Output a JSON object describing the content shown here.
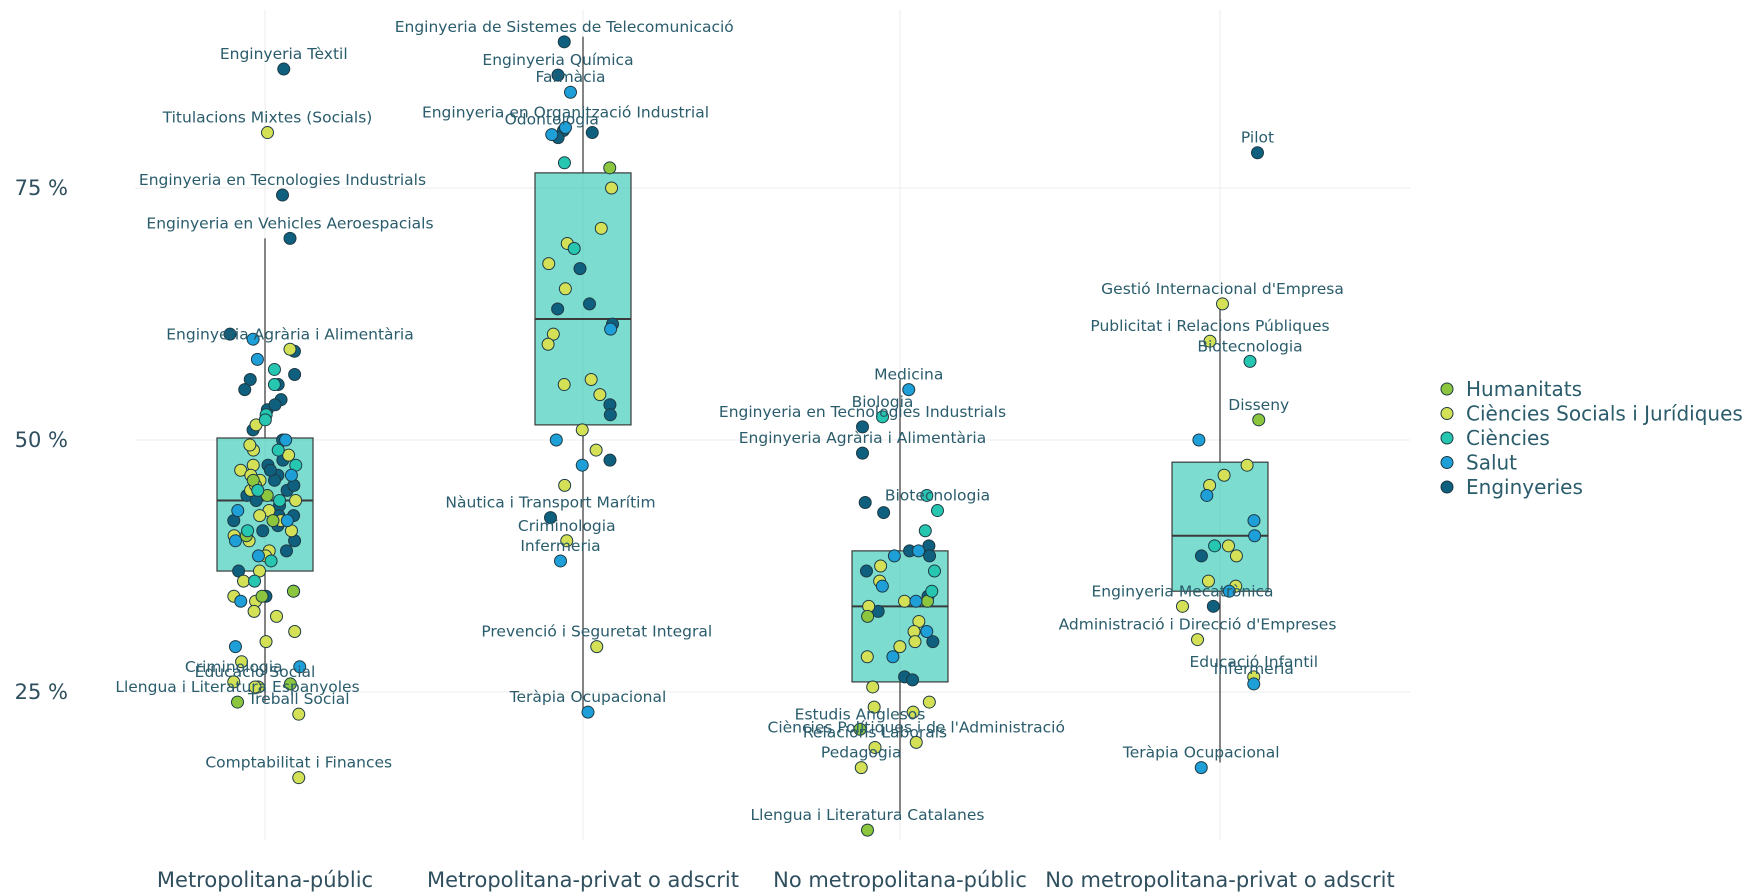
{
  "chart_data": {
    "type": "box",
    "categories": [
      "Metropolitana-públic",
      "Metropolitana-privat o adscrit",
      "No metropolitana-públic",
      "No metropolitana-privat o adscrit"
    ],
    "y_ticks": [
      {
        "value": 25,
        "label": "25 %"
      },
      {
        "value": 50,
        "label": "50 %"
      },
      {
        "value": 75,
        "label": "75 %"
      }
    ],
    "ylim": [
      8,
      93
    ],
    "grid": true,
    "legend_position": "right",
    "legend": [
      {
        "name": "Humanitats",
        "color": "#8cc63f"
      },
      {
        "name": "Ciències Socials i Jurídiques",
        "color": "#d4e157"
      },
      {
        "name": "Ciències",
        "color": "#26c6b0"
      },
      {
        "name": "Salut",
        "color": "#1e9fd8"
      },
      {
        "name": "Enginyeries",
        "color": "#0f5f7f"
      }
    ],
    "boxes": [
      {
        "category": "Metropolitana-públic",
        "whisker_low": 24,
        "q1": 37,
        "median": 44,
        "q3": 50.2,
        "whisker_high": 70
      },
      {
        "category": "Metropolitana-privat o adscrit",
        "whisker_low": 23,
        "q1": 51.5,
        "median": 62,
        "q3": 76.5,
        "whisker_high": 90
      },
      {
        "category": "No metropolitana-públic",
        "whisker_low": 13,
        "q1": 26,
        "median": 33.5,
        "q3": 39,
        "whisker_high": 56
      },
      {
        "category": "No metropolitana-privat o adscrit",
        "whisker_low": 18,
        "q1": 35,
        "median": 40.5,
        "q3": 47.8,
        "whisker_high": 63
      }
    ],
    "annotations": [
      {
        "category": 0,
        "text": "Enginyeria Tèxtil",
        "value": 86.8,
        "jitter": 0.15,
        "group": "Enginyeries"
      },
      {
        "category": 0,
        "text": "Titulacions Mixtes (Socials)",
        "value": 80.5,
        "jitter": 0.02,
        "group": "Ciències Socials i Jurídiques"
      },
      {
        "category": 0,
        "text": "Enginyeria en Tecnologies Industrials",
        "value": 74.3,
        "jitter": 0.14,
        "group": "Enginyeries"
      },
      {
        "category": 0,
        "text": "Enginyeria en Vehicles Aeroespacials",
        "value": 70.0,
        "jitter": 0.2,
        "group": "Enginyeries"
      },
      {
        "category": 0,
        "text": "Enginyeria Agrària i Alimentària",
        "value": 59.0,
        "jitter": 0.2,
        "group": "Ciències Socials i Jurídiques"
      },
      {
        "category": 0,
        "text": "Criminologia",
        "value": 26.0,
        "jitter": -0.25,
        "group": "Ciències Socials i Jurídiques"
      },
      {
        "category": 0,
        "text": "Educació Social",
        "value": 25.5,
        "jitter": -0.08,
        "group": "Ciències Socials i Jurídiques"
      },
      {
        "category": 0,
        "text": "Llengua i Literatura Espanyoles",
        "value": 24.0,
        "jitter": -0.22,
        "group": "Humanitats"
      },
      {
        "category": 0,
        "text": "Treball Social",
        "value": 22.8,
        "jitter": 0.27,
        "group": "Ciències Socials i Jurídiques"
      },
      {
        "category": 0,
        "text": "Comptabilitat i Finances",
        "value": 16.5,
        "jitter": 0.27,
        "group": "Ciències Socials i Jurídiques"
      },
      {
        "category": 1,
        "text": "Enginyeria de Sistemes de Telecomunicació",
        "value": 89.5,
        "jitter": -0.15,
        "group": "Enginyeries"
      },
      {
        "category": 1,
        "text": "Enginyeria Química",
        "value": 86.2,
        "jitter": -0.2,
        "group": "Enginyeries"
      },
      {
        "category": 1,
        "text": "Farmàcia",
        "value": 84.5,
        "jitter": -0.1,
        "group": "Salut"
      },
      {
        "category": 1,
        "text": "Enginyeria en Organització Industrial",
        "value": 81.0,
        "jitter": -0.14,
        "group": "Salut"
      },
      {
        "category": 1,
        "text": "Odontologia",
        "value": 80.3,
        "jitter": -0.25,
        "group": "Salut"
      },
      {
        "category": 1,
        "text": "Nàutica i Transport Marítim",
        "value": 42.3,
        "jitter": -0.26,
        "group": "Enginyeries"
      },
      {
        "category": 1,
        "text": "Criminologia",
        "value": 40.0,
        "jitter": -0.13,
        "group": "Ciències Socials i Jurídiques"
      },
      {
        "category": 1,
        "text": "Infermeria",
        "value": 38.0,
        "jitter": -0.18,
        "group": "Salut"
      },
      {
        "category": 1,
        "text": "Prevenció i Seguretat Integral",
        "value": 29.5,
        "jitter": 0.11,
        "group": "Ciències Socials i Jurídiques"
      },
      {
        "category": 1,
        "text": "Teràpia Ocupacional",
        "value": 23.0,
        "jitter": 0.04,
        "group": "Salut"
      },
      {
        "category": 2,
        "text": "Medicina",
        "value": 55.0,
        "jitter": 0.07,
        "group": "Salut"
      },
      {
        "category": 2,
        "text": "Biologia",
        "value": 52.3,
        "jitter": -0.14,
        "group": "Ciències"
      },
      {
        "category": 2,
        "text": "Enginyeria en Tecnologies Industrials",
        "value": 51.3,
        "jitter": -0.3,
        "group": "Enginyeries"
      },
      {
        "category": 2,
        "text": "Enginyeria Agrària i Alimentària",
        "value": 48.7,
        "jitter": -0.3,
        "group": "Enginyeries"
      },
      {
        "category": 2,
        "text": "Biotecnologia",
        "value": 43.0,
        "jitter": 0.3,
        "group": "Ciències"
      },
      {
        "category": 2,
        "text": "Estudis Anglesos",
        "value": 21.3,
        "jitter": -0.32,
        "group": "Humanitats"
      },
      {
        "category": 2,
        "text": "Relacions Laborals",
        "value": 19.5,
        "jitter": -0.2,
        "group": "Ciències Socials i Jurídiques"
      },
      {
        "category": 2,
        "text": "Ciències Polítiques i de l'Administració",
        "value": 20.0,
        "jitter": 0.13,
        "group": "Ciències Socials i Jurídiques"
      },
      {
        "category": 2,
        "text": "Pedagogia",
        "value": 17.5,
        "jitter": -0.31,
        "group": "Ciències Socials i Jurídiques"
      },
      {
        "category": 2,
        "text": "Llengua i Literatura Catalanes",
        "value": 11.3,
        "jitter": -0.26,
        "group": "Humanitats"
      },
      {
        "category": 3,
        "text": "Pilot",
        "value": 78.5,
        "jitter": 0.3,
        "group": "Enginyeries"
      },
      {
        "category": 3,
        "text": "Gestió Internacional d'Empresa",
        "value": 63.5,
        "jitter": 0.02,
        "group": "Ciències Socials i Jurídiques"
      },
      {
        "category": 3,
        "text": "Publicitat i Relacions Públiques",
        "value": 59.8,
        "jitter": -0.08,
        "group": "Ciències Socials i Jurídiques"
      },
      {
        "category": 3,
        "text": "Biotecnologia",
        "value": 57.8,
        "jitter": 0.24,
        "group": "Ciències"
      },
      {
        "category": 3,
        "text": "Disseny",
        "value": 52.0,
        "jitter": 0.31,
        "group": "Humanitats"
      },
      {
        "category": 3,
        "text": "Enginyeria Mecatrònica",
        "value": 33.5,
        "jitter": -0.3,
        "group": "Ciències Socials i Jurídiques"
      },
      {
        "category": 3,
        "text": "Administració i Direcció d'Empreses",
        "value": 30.2,
        "jitter": -0.18,
        "group": "Ciències Socials i Jurídiques"
      },
      {
        "category": 3,
        "text": "Educació Infantil",
        "value": 26.5,
        "jitter": 0.27,
        "group": "Ciències Socials i Jurídiques"
      },
      {
        "category": 3,
        "text": "Infermeria",
        "value": 25.8,
        "jitter": 0.27,
        "group": "Salut"
      },
      {
        "category": 3,
        "text": "Teràpia Ocupacional",
        "value": 17.5,
        "jitter": -0.15,
        "group": "Salut"
      }
    ],
    "points": [
      {
        "category": 0,
        "group": "Enginyeries",
        "values": [
          60.5,
          58.8,
          56.0,
          55.0,
          54.0,
          53.0,
          51.0,
          50.0,
          48.0,
          47.5,
          46.5,
          46.0,
          45.0,
          44.5,
          44.0,
          43.5,
          42.5,
          42.0,
          41.5,
          41.0,
          40.0,
          39.0,
          37.0,
          34.5,
          56.5,
          55.5,
          53.5,
          47.0,
          45.5,
          42.5
        ]
      },
      {
        "category": 0,
        "group": "Ciències Socials i Jurídiques",
        "values": [
          51.5,
          49.0,
          48.5,
          47.5,
          47.0,
          46.5,
          46.0,
          45.0,
          44.0,
          43.0,
          42.0,
          41.0,
          40.5,
          40.0,
          39.0,
          38.5,
          37.0,
          36.0,
          35.0,
          34.5,
          34.0,
          33.0,
          32.5,
          31.0,
          30.0,
          28.0,
          25.5,
          49.5,
          45.5,
          42.5
        ]
      },
      {
        "category": 0,
        "group": "Humanitats",
        "values": [
          46.0,
          44.5,
          42.0,
          40.5,
          35.0,
          34.5,
          25.8
        ]
      },
      {
        "category": 0,
        "group": "Ciències",
        "values": [
          57.0,
          55.5,
          52.5,
          52.0,
          49.0,
          47.5,
          45.0,
          44.0,
          41.0,
          38.0,
          36.0
        ]
      },
      {
        "category": 0,
        "group": "Salut",
        "values": [
          60.0,
          58.0,
          50.0,
          46.5,
          43.0,
          42.0,
          40.0,
          38.5,
          34.0,
          29.5,
          27.5
        ]
      },
      {
        "category": 1,
        "group": "Enginyeries",
        "values": [
          80.7,
          80.5,
          80.0,
          67.0,
          63.5,
          63.0,
          61.5,
          53.5,
          52.5,
          48.0
        ]
      },
      {
        "category": 1,
        "group": "Ciències Socials i Jurídiques",
        "values": [
          75.0,
          71.0,
          69.5,
          67.5,
          65.0,
          60.5,
          59.5,
          56.0,
          55.5,
          54.5,
          51.0,
          49.0,
          45.5
        ]
      },
      {
        "category": 1,
        "group": "Humanitats",
        "values": [
          77.0
        ]
      },
      {
        "category": 1,
        "group": "Ciències",
        "values": [
          77.5,
          69.0
        ]
      },
      {
        "category": 1,
        "group": "Salut",
        "values": [
          61.0,
          50.0,
          47.5
        ]
      },
      {
        "category": 2,
        "group": "Enginyeries",
        "values": [
          43.8,
          39.5,
          39.0,
          38.5,
          37.0,
          34.5,
          33.0,
          30.0,
          26.5,
          26.2,
          42.8
        ]
      },
      {
        "category": 2,
        "group": "Ciències Socials i Jurídiques",
        "values": [
          37.5,
          36.0,
          34.0,
          33.5,
          32.0,
          31.0,
          30.0,
          29.5,
          28.5,
          25.5,
          24.0,
          23.5,
          23.0
        ]
      },
      {
        "category": 2,
        "group": "Humanitats",
        "values": [
          34.0,
          32.5
        ]
      },
      {
        "category": 2,
        "group": "Ciències",
        "values": [
          44.5,
          41.0,
          37.0,
          35.0
        ]
      },
      {
        "category": 2,
        "group": "Salut",
        "values": [
          39.0,
          38.5,
          35.5,
          34.0,
          31.0,
          28.5
        ]
      },
      {
        "category": 3,
        "group": "Enginyeries",
        "values": [
          38.5,
          33.5
        ]
      },
      {
        "category": 3,
        "group": "Ciències Socials i Jurídiques",
        "values": [
          47.5,
          46.5,
          45.5,
          39.5,
          38.5,
          36.0,
          35.5
        ]
      },
      {
        "category": 3,
        "group": "Ciències",
        "values": [
          39.5
        ]
      },
      {
        "category": 3,
        "group": "Salut",
        "values": [
          50.0,
          44.5,
          42.0,
          40.5,
          35.0
        ]
      }
    ]
  }
}
